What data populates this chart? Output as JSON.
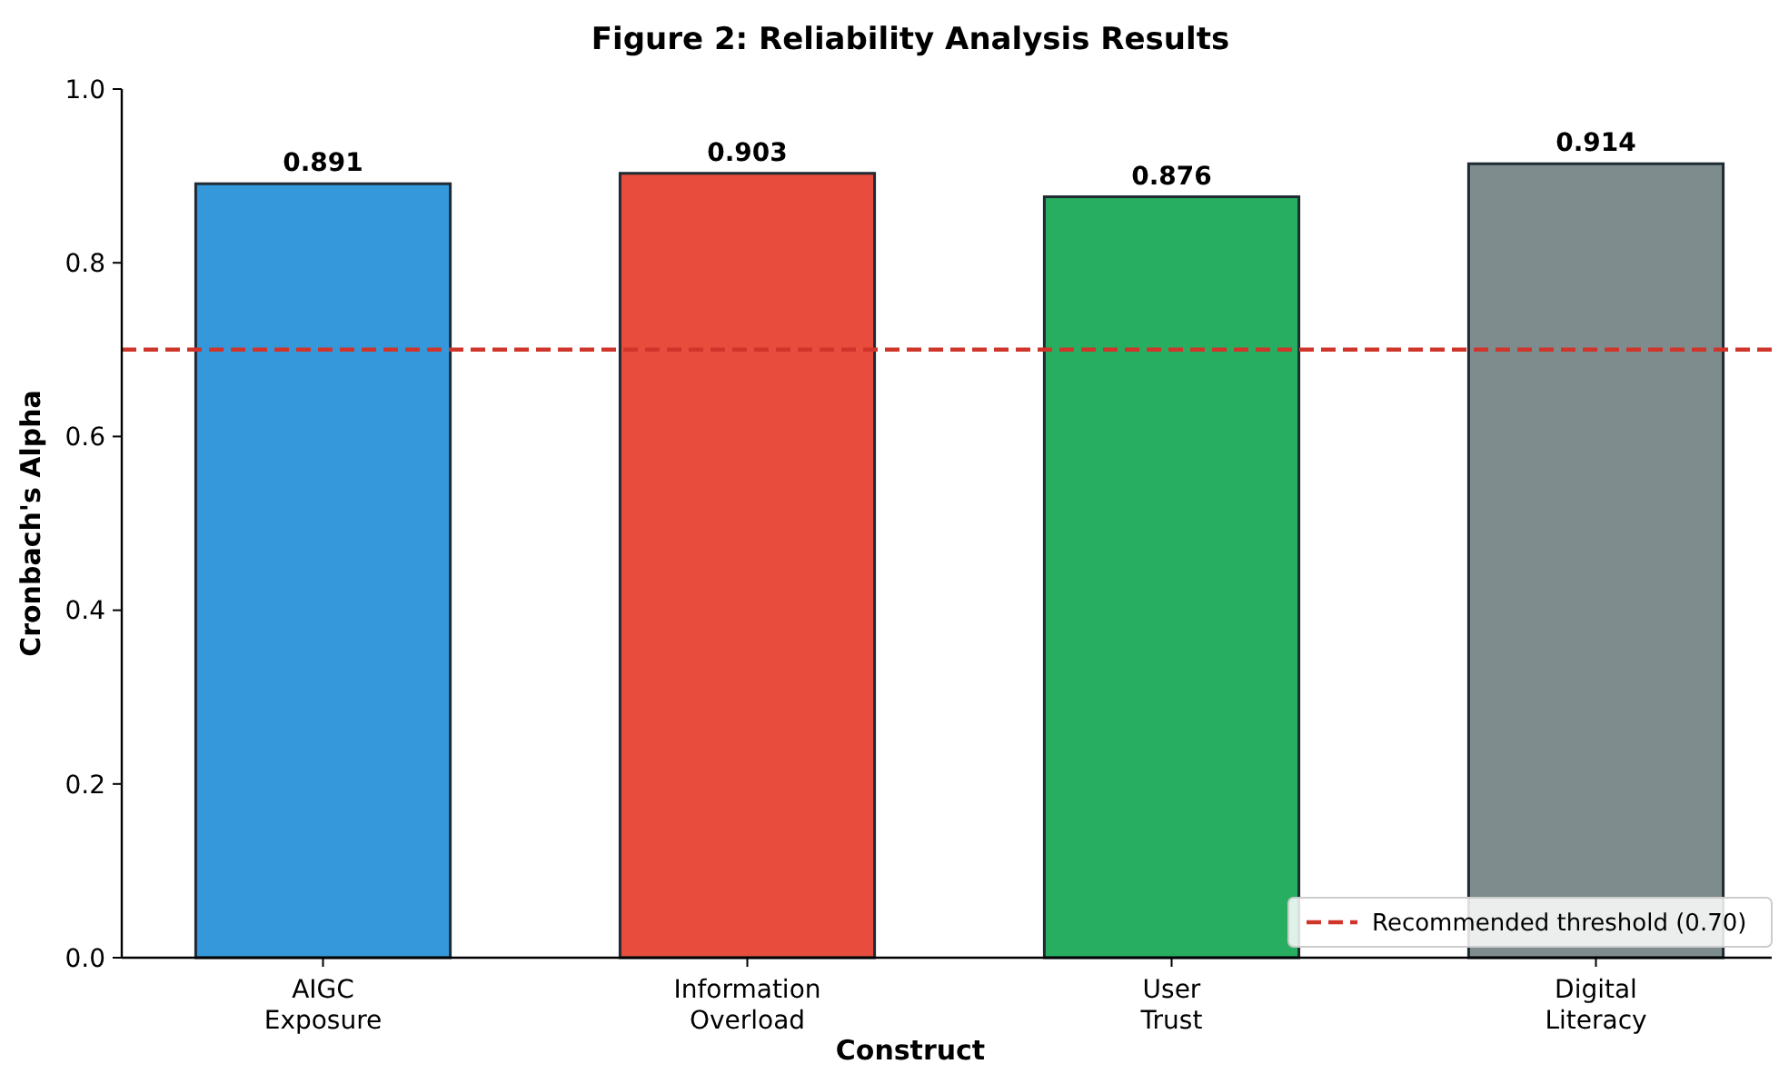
{
  "chart_data": {
    "type": "bar",
    "title": "Figure 2: Reliability Analysis Results",
    "xlabel": "Construct",
    "ylabel": "Cronbach's Alpha",
    "categories": [
      "AIGC\nExposure",
      "Information\nOverload",
      "User\nTrust",
      "Digital\nLiteracy"
    ],
    "values": [
      0.891,
      0.903,
      0.876,
      0.914
    ],
    "colors": [
      "#3498db",
      "#e74c3c",
      "#27ae60",
      "#7f8c8d"
    ],
    "data_labels": true,
    "ylim": [
      0,
      1
    ],
    "yticks": [
      {
        "value": 0,
        "label": "0.0"
      },
      {
        "value": 0.2,
        "label": "0.2"
      },
      {
        "value": 0.4,
        "label": "0.4"
      },
      {
        "value": 0.6,
        "label": "0.6"
      },
      {
        "value": 0.8,
        "label": "0.8"
      },
      {
        "value": 1,
        "label": "1.0"
      }
    ],
    "ref_lines": [
      {
        "axis": "y",
        "value": 0.7,
        "label": "Recommended threshold (0.70)",
        "color": "#d0352b",
        "line_style": "dashed"
      }
    ],
    "legend": "bottom right",
    "grid": false
  }
}
